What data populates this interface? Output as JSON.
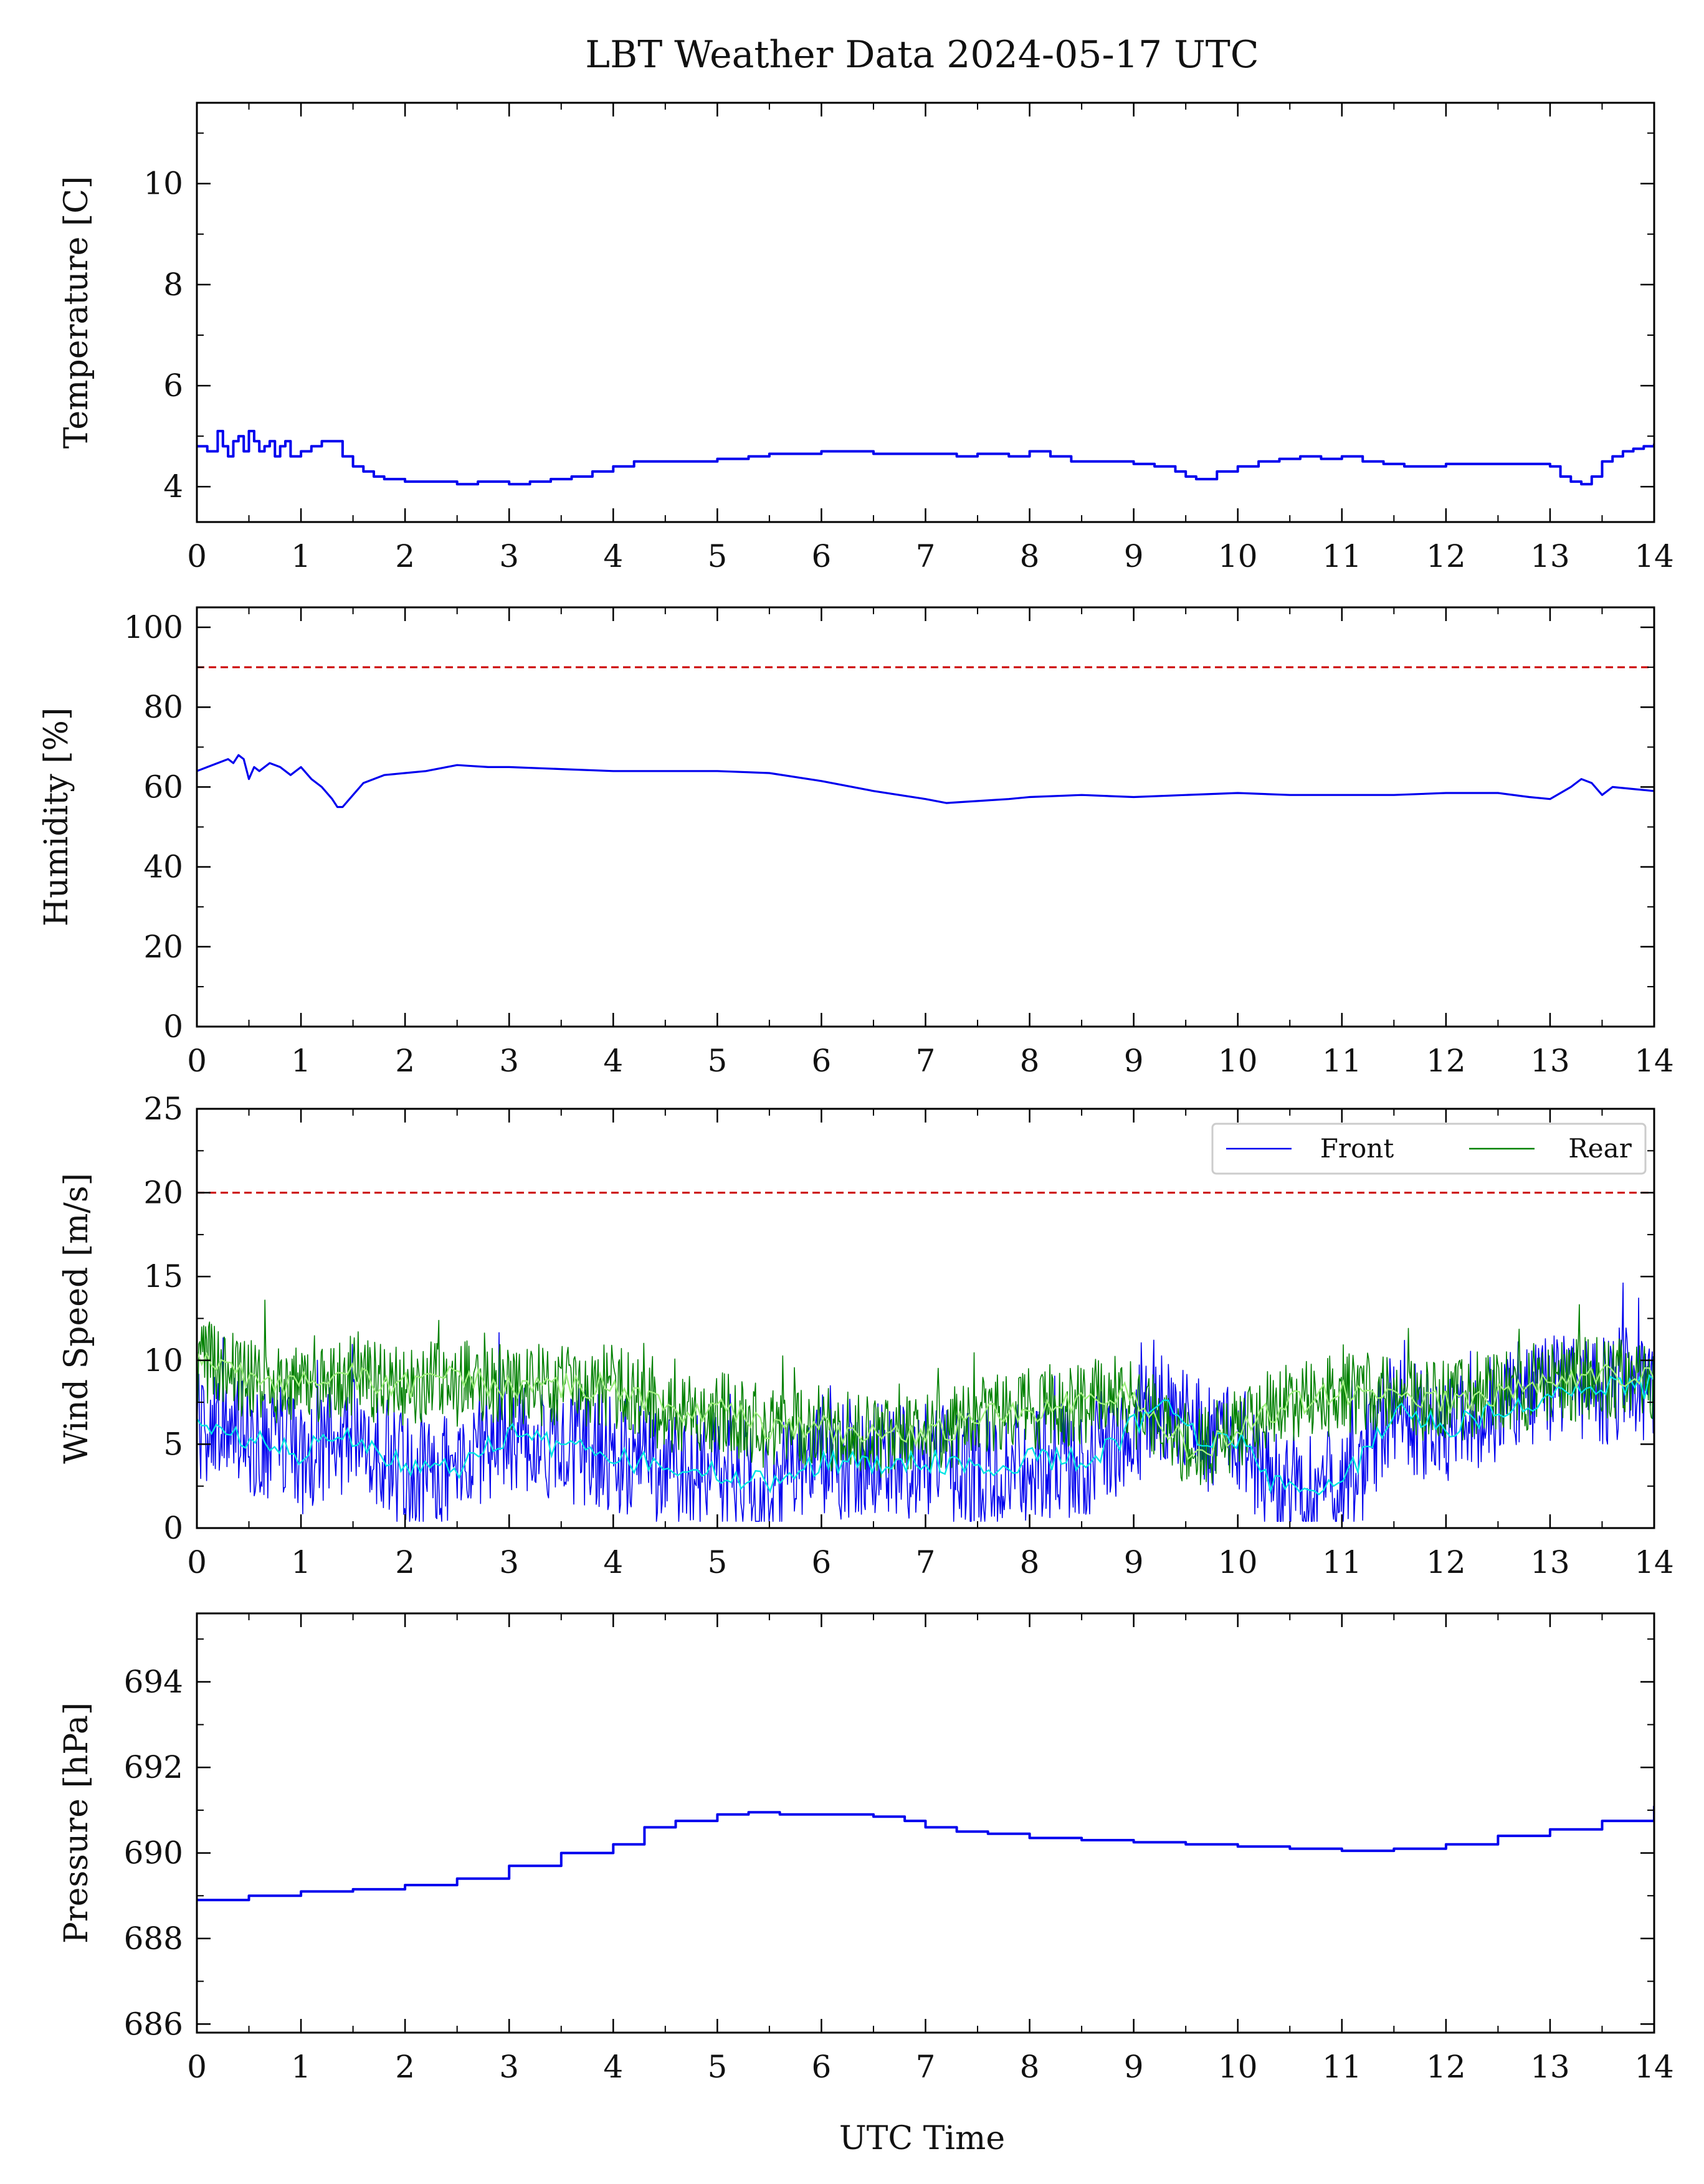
{
  "figure": {
    "title": "LBT Weather Data 2024-05-17 UTC",
    "xlabel": "UTC Time"
  },
  "chart_data": [
    {
      "type": "line",
      "ylabel": "Temperature [C]",
      "xlim": [
        0,
        14
      ],
      "ylim": [
        3.3,
        11.6
      ],
      "xticks": [
        "0",
        "1",
        "2",
        "3",
        "4",
        "5",
        "6",
        "7",
        "8",
        "9",
        "10",
        "11",
        "12",
        "13",
        "14"
      ],
      "yticks": [
        "4",
        "6",
        "8",
        "10"
      ],
      "series": [
        {
          "color": "#0000ee",
          "step": true,
          "x": [
            0,
            0.1,
            0.2,
            0.25,
            0.3,
            0.35,
            0.4,
            0.45,
            0.5,
            0.55,
            0.6,
            0.65,
            0.7,
            0.75,
            0.8,
            0.85,
            0.9,
            1.0,
            1.1,
            1.2,
            1.3,
            1.4,
            1.5,
            1.6,
            1.7,
            1.8,
            2.0,
            2.2,
            2.5,
            2.7,
            3.0,
            3.2,
            3.4,
            3.6,
            3.8,
            4.0,
            4.2,
            4.5,
            5.0,
            5.3,
            5.5,
            5.8,
            6.0,
            6.2,
            6.5,
            7.0,
            7.3,
            7.5,
            7.8,
            8.0,
            8.2,
            8.4,
            8.6,
            8.8,
            9.0,
            9.2,
            9.4,
            9.5,
            9.6,
            9.8,
            10.0,
            10.2,
            10.4,
            10.6,
            10.8,
            11.0,
            11.2,
            11.4,
            11.6,
            11.8,
            12.0,
            12.2,
            12.5,
            12.8,
            13.0,
            13.1,
            13.2,
            13.3,
            13.4,
            13.5,
            13.6,
            13.7,
            13.8,
            13.9,
            14.0
          ],
          "y": [
            4.8,
            4.7,
            5.1,
            4.8,
            4.6,
            4.9,
            5.0,
            4.7,
            5.1,
            4.9,
            4.7,
            4.8,
            4.9,
            4.6,
            4.8,
            4.9,
            4.6,
            4.7,
            4.8,
            4.9,
            4.9,
            4.6,
            4.4,
            4.3,
            4.2,
            4.15,
            4.1,
            4.1,
            4.05,
            4.1,
            4.05,
            4.1,
            4.15,
            4.2,
            4.3,
            4.4,
            4.5,
            4.5,
            4.55,
            4.6,
            4.65,
            4.65,
            4.7,
            4.7,
            4.65,
            4.65,
            4.6,
            4.65,
            4.6,
            4.7,
            4.6,
            4.5,
            4.5,
            4.5,
            4.45,
            4.4,
            4.3,
            4.2,
            4.15,
            4.3,
            4.4,
            4.5,
            4.55,
            4.6,
            4.55,
            4.6,
            4.5,
            4.45,
            4.4,
            4.4,
            4.45,
            4.45,
            4.45,
            4.45,
            4.4,
            4.2,
            4.1,
            4.05,
            4.2,
            4.5,
            4.6,
            4.7,
            4.75,
            4.8,
            4.85
          ]
        }
      ],
      "hlines": []
    },
    {
      "type": "line",
      "ylabel": "Humidity [%]",
      "xlim": [
        0,
        14
      ],
      "ylim": [
        0,
        105
      ],
      "xticks": [
        "0",
        "1",
        "2",
        "3",
        "4",
        "5",
        "6",
        "7",
        "8",
        "9",
        "10",
        "11",
        "12",
        "13",
        "14"
      ],
      "yticks": [
        "0",
        "20",
        "40",
        "60",
        "80",
        "100"
      ],
      "series": [
        {
          "color": "#0000ee",
          "step": false,
          "x": [
            0,
            0.1,
            0.2,
            0.3,
            0.35,
            0.4,
            0.45,
            0.5,
            0.55,
            0.6,
            0.7,
            0.8,
            0.9,
            1.0,
            1.1,
            1.2,
            1.3,
            1.35,
            1.4,
            1.5,
            1.6,
            1.8,
            2.0,
            2.2,
            2.5,
            2.8,
            3.0,
            3.5,
            4.0,
            4.5,
            5.0,
            5.5,
            6.0,
            6.5,
            7.0,
            7.2,
            7.5,
            7.8,
            8.0,
            8.5,
            9.0,
            9.5,
            10.0,
            10.5,
            11.0,
            11.5,
            12.0,
            12.5,
            12.8,
            13.0,
            13.2,
            13.3,
            13.4,
            13.5,
            13.6,
            13.8,
            14.0
          ],
          "y": [
            64,
            65,
            66,
            67,
            66,
            68,
            67,
            62,
            65,
            64,
            66,
            65,
            63,
            65,
            62,
            60,
            57,
            55,
            55,
            58,
            61,
            63,
            63.5,
            64,
            65.5,
            65,
            65,
            64.5,
            64,
            64,
            64,
            63.5,
            61.5,
            59,
            57,
            56,
            56.5,
            57,
            57.5,
            58,
            57.5,
            58,
            58.5,
            58,
            58,
            58,
            58.5,
            58.5,
            57.5,
            57,
            60,
            62,
            61,
            58,
            60,
            59.5,
            59
          ]
        }
      ],
      "hlines": [
        {
          "y": 90,
          "color": "#cc0000",
          "dash": true
        }
      ]
    },
    {
      "type": "line",
      "ylabel": "Wind Speed [m/s]",
      "xlim": [
        0,
        14
      ],
      "ylim": [
        0,
        25
      ],
      "xticks": [
        "0",
        "1",
        "2",
        "3",
        "4",
        "5",
        "6",
        "7",
        "8",
        "9",
        "10",
        "11",
        "12",
        "13",
        "14"
      ],
      "yticks": [
        "0",
        "5",
        "10",
        "15",
        "20",
        "25"
      ],
      "legend": {
        "position": "top-right",
        "entries": [
          {
            "label": "Front",
            "color": "#0000ee"
          },
          {
            "label": "Rear",
            "color": "#008000"
          }
        ]
      },
      "series": [
        {
          "name": "Front",
          "color": "#0000ee",
          "noise": 3.5,
          "x": [
            0,
            0.5,
            1,
            1.5,
            2,
            2.5,
            3,
            3.5,
            4,
            4.5,
            5,
            5.5,
            6,
            6.5,
            7,
            7.5,
            8,
            8.5,
            9,
            9.3,
            9.6,
            10,
            10.3,
            10.6,
            11,
            11.5,
            12,
            12.5,
            13,
            13.5,
            14
          ],
          "y": [
            6,
            5.5,
            4.5,
            5.5,
            3.5,
            3.5,
            5.5,
            5,
            4.5,
            3.5,
            3.5,
            2.5,
            4,
            4,
            4,
            3.5,
            4,
            4,
            6,
            7.5,
            5.5,
            5.5,
            3,
            2.5,
            2.5,
            7,
            6,
            7,
            8,
            8.5,
            8.5
          ]
        },
        {
          "name": "Rear",
          "color": "#008000",
          "noise": 2.5,
          "x": [
            0,
            0.5,
            1,
            1.5,
            2,
            2.5,
            3,
            3.5,
            4,
            4.5,
            5,
            5.5,
            6,
            6.5,
            7,
            7.5,
            8,
            8.5,
            9,
            9.3,
            9.6,
            10,
            10.3,
            10.6,
            11,
            11.5,
            12,
            12.5,
            13,
            13.5,
            14
          ],
          "y": [
            10,
            9,
            8.5,
            9,
            8.5,
            9,
            8.5,
            8.5,
            8.5,
            7,
            7,
            6,
            6,
            5.5,
            5.5,
            6.5,
            7,
            7.5,
            8,
            6,
            4.5,
            6,
            7,
            7.5,
            8,
            8,
            7.5,
            8,
            8.5,
            9,
            9
          ]
        }
      ],
      "smooth": [
        {
          "of": "Front",
          "color": "#00e5e5"
        },
        {
          "of": "Rear",
          "color": "#a0ee80"
        }
      ],
      "hlines": [
        {
          "y": 20,
          "color": "#cc0000",
          "dash": true
        }
      ]
    },
    {
      "type": "line",
      "ylabel": "Pressure [hPa]",
      "xlim": [
        0,
        14
      ],
      "ylim": [
        685.8,
        695.6
      ],
      "xticks": [
        "0",
        "1",
        "2",
        "3",
        "4",
        "5",
        "6",
        "7",
        "8",
        "9",
        "10",
        "11",
        "12",
        "13",
        "14"
      ],
      "yticks": [
        "686",
        "688",
        "690",
        "692",
        "694"
      ],
      "series": [
        {
          "color": "#0000ee",
          "step": true,
          "x": [
            0,
            0.5,
            1,
            1.5,
            2,
            2.5,
            3,
            3.5,
            4,
            4.3,
            4.6,
            5,
            5.3,
            5.6,
            6,
            6.5,
            6.8,
            7,
            7.3,
            7.6,
            8,
            8.5,
            9,
            9.5,
            10,
            10.5,
            11,
            11.5,
            12,
            12.5,
            13,
            13.5,
            14
          ],
          "y": [
            688.9,
            689.0,
            689.1,
            689.15,
            689.25,
            689.4,
            689.7,
            690.0,
            690.2,
            690.6,
            690.75,
            690.9,
            690.95,
            690.9,
            690.9,
            690.85,
            690.75,
            690.6,
            690.5,
            690.45,
            690.35,
            690.3,
            690.25,
            690.2,
            690.15,
            690.1,
            690.05,
            690.1,
            690.2,
            690.4,
            690.55,
            690.75,
            691.1
          ]
        }
      ],
      "hlines": []
    }
  ]
}
